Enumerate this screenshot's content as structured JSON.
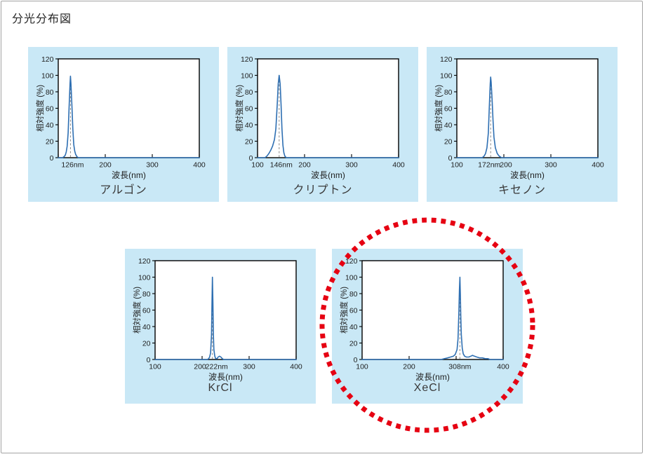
{
  "title": "分光分布図",
  "colors": {
    "panel_bg": "#c9e8f6",
    "curve": "#2e6fb2",
    "dashed_line": "#8c8c8c",
    "axis": "#000000",
    "highlight_circle": "#e60012",
    "frame_border": "#a3a3a3"
  },
  "chart_data": [
    {
      "type": "line",
      "id": "argon",
      "label": "アルゴン",
      "ylabel": "相対強度 (%)",
      "xlabel": "波長(nm)",
      "xlim": [
        100,
        400
      ],
      "ylim": [
        0,
        120
      ],
      "grid": false,
      "peak_nm": 126,
      "peak_label": "126nm",
      "yticks": [
        0,
        20,
        40,
        60,
        80,
        100,
        120
      ],
      "xticks": [
        {
          "v": 126,
          "label": "126nm",
          "dx": 3
        },
        {
          "v": 200,
          "label": "200"
        },
        {
          "v": 300,
          "label": "300"
        },
        {
          "v": 400,
          "label": "400"
        }
      ],
      "points": [
        [
          100,
          0
        ],
        [
          109,
          0
        ],
        [
          112,
          1
        ],
        [
          115,
          3
        ],
        [
          117,
          7
        ],
        [
          119,
          14
        ],
        [
          121,
          30
        ],
        [
          123,
          60
        ],
        [
          125,
          90
        ],
        [
          126,
          99
        ],
        [
          127,
          90
        ],
        [
          129,
          65
        ],
        [
          131,
          35
        ],
        [
          133,
          16
        ],
        [
          135,
          8
        ],
        [
          137,
          4
        ],
        [
          140,
          1
        ],
        [
          143,
          0
        ],
        [
          400,
          0
        ]
      ]
    },
    {
      "type": "line",
      "id": "krypton",
      "label": "クリプトン",
      "ylabel": "相対強度 (%)",
      "xlabel": "波長(nm)",
      "xlim": [
        100,
        400
      ],
      "ylim": [
        0,
        120
      ],
      "grid": false,
      "peak_nm": 146,
      "peak_label": "146nm",
      "yticks": [
        0,
        20,
        40,
        60,
        80,
        100,
        120
      ],
      "xticks": [
        {
          "v": 100,
          "label": "100"
        },
        {
          "v": 146,
          "label": "146nm",
          "dx": 3
        },
        {
          "v": 200,
          "label": "200"
        },
        {
          "v": 300,
          "label": "300"
        },
        {
          "v": 400,
          "label": "400"
        }
      ],
      "points": [
        [
          100,
          0
        ],
        [
          116,
          0
        ],
        [
          120,
          2
        ],
        [
          124,
          5
        ],
        [
          128,
          9
        ],
        [
          132,
          14
        ],
        [
          136,
          22
        ],
        [
          139,
          35
        ],
        [
          142,
          65
        ],
        [
          144,
          90
        ],
        [
          146,
          100
        ],
        [
          148,
          90
        ],
        [
          150,
          65
        ],
        [
          152,
          35
        ],
        [
          154,
          15
        ],
        [
          156,
          6
        ],
        [
          158,
          2
        ],
        [
          161,
          0
        ],
        [
          400,
          0
        ]
      ]
    },
    {
      "type": "line",
      "id": "xenon",
      "label": "キセノン",
      "ylabel": "相対強度 (%)",
      "xlabel": "波長(nm)",
      "xlim": [
        100,
        400
      ],
      "ylim": [
        0,
        120
      ],
      "grid": false,
      "peak_nm": 172,
      "peak_label": "172nm",
      "yticks": [
        0,
        20,
        40,
        60,
        80,
        100,
        120
      ],
      "xticks": [
        {
          "v": 100,
          "label": "100"
        },
        {
          "v": 172,
          "label": "172nm",
          "dx": -2
        },
        {
          "v": 200,
          "label": "200",
          "dx": 3
        },
        {
          "v": 300,
          "label": "300"
        },
        {
          "v": 400,
          "label": "400"
        }
      ],
      "points": [
        [
          100,
          0
        ],
        [
          154,
          0
        ],
        [
          158,
          2
        ],
        [
          161,
          5
        ],
        [
          164,
          12
        ],
        [
          167,
          30
        ],
        [
          169,
          60
        ],
        [
          171,
          90
        ],
        [
          172,
          98
        ],
        [
          173,
          92
        ],
        [
          175,
          70
        ],
        [
          177,
          45
        ],
        [
          179,
          25
        ],
        [
          182,
          12
        ],
        [
          186,
          5
        ],
        [
          190,
          2
        ],
        [
          195,
          0
        ],
        [
          400,
          0
        ]
      ]
    },
    {
      "type": "line",
      "id": "krcl",
      "label": "KrCl",
      "ylabel": "相対強度 (%)",
      "xlabel": "波長(nm)",
      "xlim": [
        100,
        400
      ],
      "ylim": [
        0,
        120
      ],
      "grid": false,
      "peak_nm": 222,
      "peak_label": "222nm",
      "yticks": [
        0,
        20,
        40,
        60,
        80,
        100,
        120
      ],
      "xticks": [
        {
          "v": 100,
          "label": "100"
        },
        {
          "v": 200,
          "label": "200",
          "dx": -3
        },
        {
          "v": 222,
          "label": "222nm",
          "dx": 6
        },
        {
          "v": 300,
          "label": "300"
        },
        {
          "v": 400,
          "label": "400"
        }
      ],
      "points": [
        [
          100,
          0
        ],
        [
          211,
          0
        ],
        [
          214,
          1
        ],
        [
          216,
          3
        ],
        [
          218,
          8
        ],
        [
          220,
          30
        ],
        [
          221,
          70
        ],
        [
          222,
          100
        ],
        [
          223,
          70
        ],
        [
          224,
          30
        ],
        [
          225,
          12
        ],
        [
          227,
          4
        ],
        [
          229,
          1
        ],
        [
          232,
          1
        ],
        [
          234,
          3
        ],
        [
          237,
          4
        ],
        [
          240,
          3
        ],
        [
          243,
          1
        ],
        [
          246,
          0
        ],
        [
          400,
          0
        ]
      ]
    },
    {
      "type": "line",
      "id": "xecl",
      "label": "XeCl",
      "ylabel": "相対強度 (%)",
      "xlabel": "波長(nm)",
      "xlim": [
        100,
        400
      ],
      "ylim": [
        0,
        120
      ],
      "grid": false,
      "highlighted": true,
      "peak_nm": 308,
      "peak_label": "308nm",
      "yticks": [
        0,
        20,
        40,
        60,
        80,
        100,
        120
      ],
      "xticks": [
        {
          "v": 100,
          "label": "100"
        },
        {
          "v": 200,
          "label": "200"
        },
        {
          "v": 308,
          "label": "308nm"
        },
        {
          "v": 400,
          "label": "400"
        }
      ],
      "points": [
        [
          100,
          0
        ],
        [
          268,
          0
        ],
        [
          275,
          1
        ],
        [
          282,
          2
        ],
        [
          288,
          3
        ],
        [
          294,
          4
        ],
        [
          298,
          6
        ],
        [
          302,
          12
        ],
        [
          304,
          25
        ],
        [
          306,
          60
        ],
        [
          307,
          85
        ],
        [
          308,
          100
        ],
        [
          309,
          80
        ],
        [
          310,
          50
        ],
        [
          311,
          30
        ],
        [
          313,
          14
        ],
        [
          315,
          7
        ],
        [
          318,
          4
        ],
        [
          322,
          3
        ],
        [
          327,
          3
        ],
        [
          331,
          4
        ],
        [
          335,
          5
        ],
        [
          339,
          4
        ],
        [
          344,
          3
        ],
        [
          350,
          2
        ],
        [
          356,
          2
        ],
        [
          362,
          1
        ],
        [
          368,
          1
        ],
        [
          372,
          0
        ],
        [
          400,
          0
        ]
      ]
    }
  ]
}
